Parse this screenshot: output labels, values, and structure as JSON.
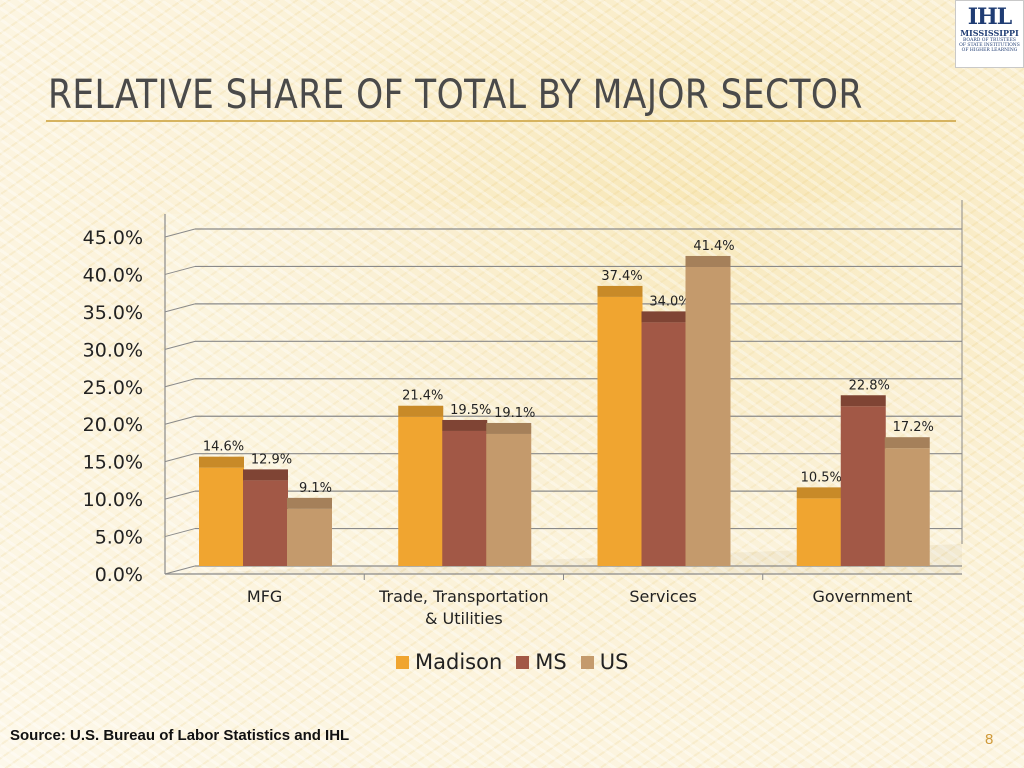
{
  "title": "RELATIVE SHARE OF TOTAL BY MAJOR SECTOR",
  "logo": {
    "mark": "IHL",
    "org": "MISSISSIPPI",
    "line1": "BOARD OF TRUSTEES",
    "line2": "OF STATE INSTITUTIONS",
    "line3": "OF HIGHER LEARNING"
  },
  "source": "Source: U.S. Bureau of Labor Statistics and IHL",
  "page_number": "8",
  "chart_data": {
    "type": "bar",
    "categories": [
      "MFG",
      "Trade, Transportation & Utilities",
      "Services",
      "Government"
    ],
    "category_lines": [
      [
        "MFG"
      ],
      [
        "Trade, Transportation",
        "& Utilities"
      ],
      [
        "Services"
      ],
      [
        "Government"
      ]
    ],
    "series": [
      {
        "name": "Madison",
        "values": [
          14.6,
          21.4,
          37.4,
          10.5
        ],
        "labels": [
          "14.6%",
          "21.4%",
          "37.4%",
          "10.5%"
        ],
        "color": "#f0a530",
        "cap": "#c88a28"
      },
      {
        "name": "MS",
        "values": [
          12.9,
          19.5,
          34.0,
          22.8
        ],
        "labels": [
          "12.9%",
          "19.5%",
          "34.0%",
          "22.8%"
        ],
        "color": "#a25846",
        "cap": "#7f4434"
      },
      {
        "name": "US",
        "values": [
          9.1,
          19.1,
          41.4,
          17.2
        ],
        "labels": [
          "9.1%",
          "19.1%",
          "41.4%",
          "17.2%"
        ],
        "color": "#c49a6c",
        "cap": "#a5805a"
      }
    ],
    "y_ticks": [
      "0.0%",
      "5.0%",
      "10.0%",
      "15.0%",
      "20.0%",
      "25.0%",
      "30.0%",
      "35.0%",
      "40.0%",
      "45.0%"
    ],
    "ylim": [
      0,
      45
    ],
    "grid": true,
    "legend_position": "bottom"
  }
}
